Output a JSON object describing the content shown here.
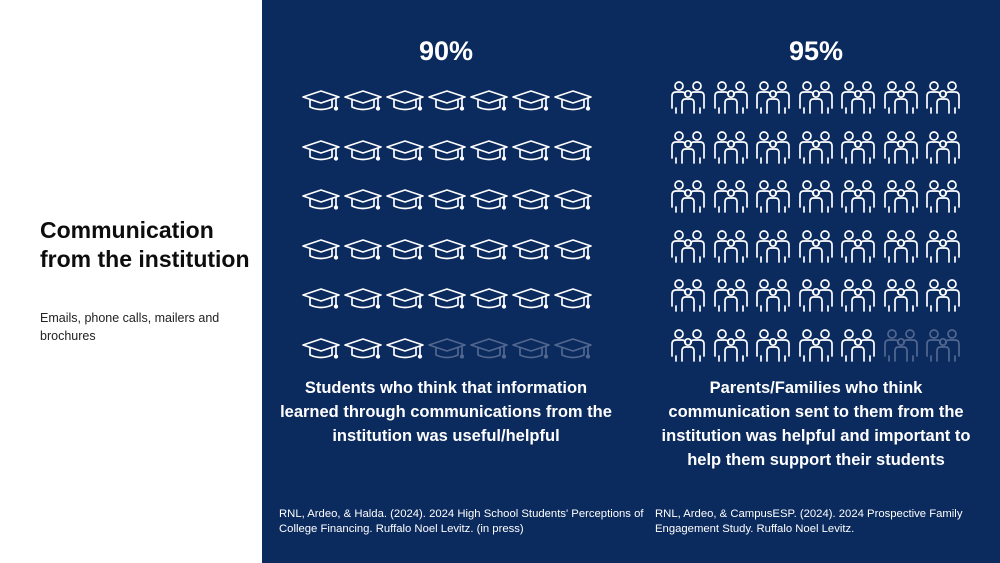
{
  "slide": {
    "title": "Communication from the institution",
    "subtitle": "Emails, phone calls, mailers and brochures"
  },
  "colors": {
    "panel": "#0b2a5e",
    "icon_filled": "#ffffff",
    "icon_unfilled": "#51678f"
  },
  "chart_data": [
    {
      "type": "pictograph",
      "icon": "graduation-cap-icon",
      "value_label": "90%",
      "value": 90,
      "rows": 6,
      "cols": 7,
      "total_icons": 42,
      "filled_icons": 38,
      "description": "Students who think that information learned through communications from the institution was useful/helpful",
      "citation": "RNL, Ardeo, & Halda. (2024). 2024 High School Students' Perceptions of College Financing. Ruffalo Noel Levitz.  (in press)"
    },
    {
      "type": "pictograph",
      "icon": "family-icon",
      "value_label": "95%",
      "value": 95,
      "rows": 6,
      "cols": 7,
      "total_icons": 42,
      "filled_icons": 40,
      "description": "Parents/Families who think communication sent to them from the institution was helpful and important to help them support their students",
      "citation": "RNL, Ardeo, & CampusESP. (2024). 2024 Prospective Family Engagement Study. Ruffalo Noel Levitz."
    }
  ]
}
